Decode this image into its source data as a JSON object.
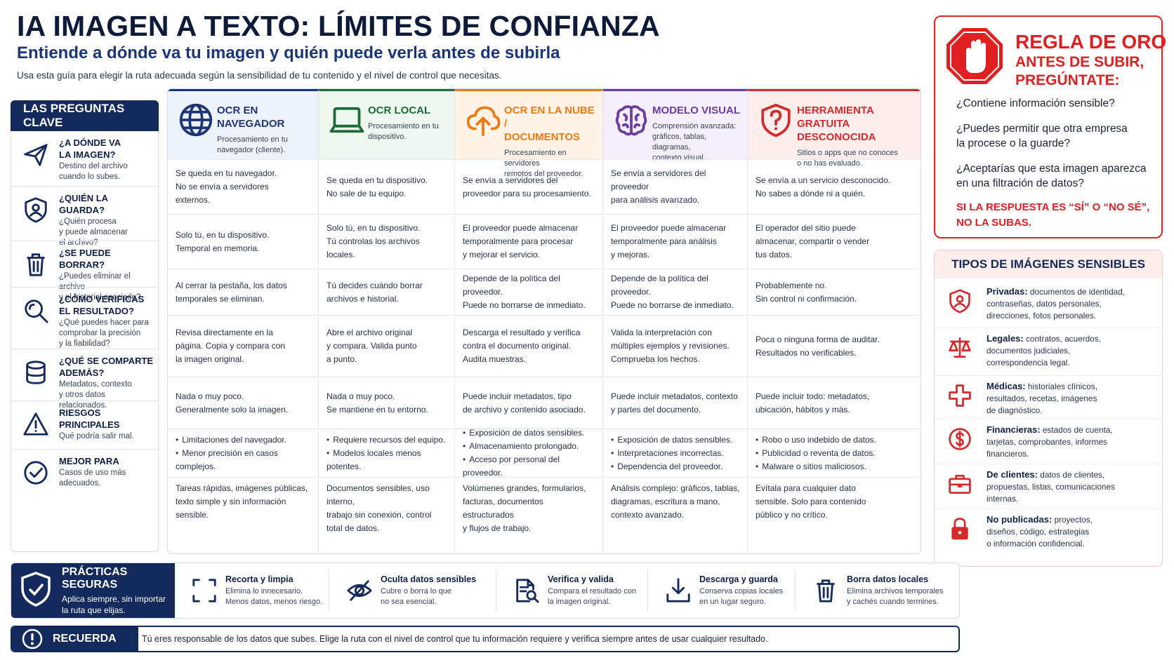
{
  "header": {
    "title": "IA IMAGEN A TEXTO: LÍMITES DE CONFIANZA",
    "subtitle": "Entiende a dónde va tu imagen y quién puede verla antes de subirla",
    "intro": "Usa esta guía para elegir la ruta adecuada según la sensibilidad de tu contenido y el nivel de control que necesitas."
  },
  "questions": {
    "heading": "LAS PREGUNTAS CLAVE",
    "items": [
      {
        "icon": "paper-plane-icon",
        "title": "¿A DÓNDE VA\nLA IMAGEN?",
        "desc": "Destino del archivo\ncuando lo subes."
      },
      {
        "icon": "shield-user-icon",
        "title": "¿QUIÉN LA GUARDA?",
        "desc": "¿Quién procesa\ny puede almacenar\nel archivo?"
      },
      {
        "icon": "trash-icon",
        "title": "¿SE PUEDE BORRAR?",
        "desc": "¿Puedes eliminar el archivo\ny el historial asociado?"
      },
      {
        "icon": "magnifier-icon",
        "title": "¿CÓMO VERIFICAS\nEL RESULTADO?",
        "desc": "¿Qué puedes hacer para\ncomprobar la precisión\ny la fiabilidad?"
      },
      {
        "icon": "database-icon",
        "title": "¿QUÉ SE COMPARTE\nADEMÁS?",
        "desc": "Metadatos, contexto\ny otros datos relacionados."
      },
      {
        "icon": "warning-icon",
        "title": "RIESGOS PRINCIPALES",
        "desc": "Qué podría salir mal."
      },
      {
        "icon": "check-circle-icon",
        "title": "MEJOR PARA",
        "desc": "Casos de uso más\nadecuados."
      }
    ]
  },
  "columns": [
    {
      "icon": "globe-icon",
      "color": "#1c3577",
      "title": "OCR EN NAVEGADOR",
      "desc": "Procesamiento en tu\nnavegador (cliente).",
      "cells": [
        "Se queda en tu navegador.\nNo se envía a servidores\nexternos.",
        "Solo tú, en tu dispositivo.\nTemporal en memoria.",
        "Al cerrar la pestaña, los datos\ntemporales se eliminan.",
        "Revisa directamente en la\npágina. Copia y compara con\nla imagen original.",
        "Nada o muy poco.\nGeneralmente solo la imagen."
      ],
      "risks": [
        "Limitaciones del navegador.",
        "Menor precisión en casos\ncomplejos."
      ],
      "best": "Tareas rápidas, imágenes públicas,\ntexto simple y sin información\nsensible."
    },
    {
      "icon": "laptop-icon",
      "color": "#1d6b3a",
      "title": "OCR LOCAL",
      "desc": "Procesamiento en tu\ndispositivo.",
      "cells": [
        "Se queda en tu dispositivo.\nNo sale de tu equipo.",
        "Solo tú, en tu dispositivo.\nTú controlas los archivos\nlocales.",
        "Tú decides cuándo borrar\narchivos e historial.",
        "Abre el archivo original\ny compara. Valida punto\na punto.",
        "Nada o muy poco.\nSe mantiene en tu entorno."
      ],
      "risks": [
        "Requiere recursos del equipo.",
        "Modelos locales menos potentes."
      ],
      "best": "Documentos sensibles, uso interno,\ntrabajo sin conexión, control\ntotal de datos."
    },
    {
      "icon": "cloud-upload-icon",
      "color": "#ef7a12",
      "title": "OCR EN LA NUBE /\nDOCUMENTOS",
      "desc": "Procesamiento en servidores\nremotos del proveedor.",
      "cells": [
        "Se envía a servidores del\nproveedor para su procesamiento.",
        "El proveedor puede almacenar\ntemporalmente para procesar\ny mejorar el servicio.",
        "Depende de la política del proveedor.\nPuede no borrarse de inmediato.",
        "Descarga el resultado y verifica\ncontra el documento original.\nAudita muestras.",
        "Puede incluir metadatos, tipo\nde archivo y contenido asociado."
      ],
      "risks": [
        "Exposición de datos sensibles.",
        "Almacenamiento prolongado.",
        "Acceso por personal del proveedor."
      ],
      "best": "Volúmenes grandes, formularios,\nfacturas, documentos estructurados\ny flujos de trabajo."
    },
    {
      "icon": "brain-icon",
      "color": "#6a3ea1",
      "title": "MODELO VISUAL",
      "desc": "Comprensión avanzada:\ngráficos, tablas, diagramas,\ncontexto visual.",
      "cells": [
        "Se envía a servidores del proveedor\npara análisis avanzado.",
        "El proveedor puede almacenar\ntemporalmente para análisis\ny mejoras.",
        "Depende de la política del proveedor.\nPuede no borrarse de inmediato.",
        "Valida la interpretación con\nmúltiples ejemplos y revisiones.\nComprueba los hechos.",
        "Puede incluir metadatos, contexto\ny partes del documento."
      ],
      "risks": [
        "Exposición de datos sensibles.",
        "Interpretaciones incorrectas.",
        "Dependencia del proveedor."
      ],
      "best": "Análisis complejo: gráficos, tablas,\ndiagramas, escritura a mano,\ncontexto avanzado."
    },
    {
      "icon": "shield-question-icon",
      "color": "#d42a2a",
      "title": "HERRAMIENTA GRATUITA\nDESCONOCIDA",
      "desc": "Sitios o apps que no conoces\no no has evaluado.",
      "cells": [
        "Se envía a un servicio desconocido.\nNo sabes a dónde ni a quién.",
        "El operador del sitio puede\nalmacenar, compartir o vender\ntus datos.",
        "Probablemente no.\nSin control ni confirmación.",
        "Poca o ninguna forma de auditar.\nResultados no verificables.",
        "Puede incluir todo: metadatos,\nubicación, hábitos y más."
      ],
      "risks": [
        "Robo o uso indebido de datos.",
        "Publicidad o reventa de datos.",
        "Malware o sitios maliciosos."
      ],
      "best": "Evítala para cualquier dato\nsensible. Solo para contenido\npúblico y no crítico."
    }
  ],
  "golden_rule": {
    "icon": "stop-hand-icon",
    "title1": "REGLA DE ORO",
    "title2": "ANTES DE SUBIR,\nPREGÚNTATE:",
    "questions": [
      "¿Contiene información sensible?",
      "¿Puedes permitir que otra empresa\nla procese o la guarde?",
      "¿Aceptarías que esta imagen aparezca\nen una filtración de datos?"
    ],
    "warning": "SI LA RESPUESTA ES “SÍ” O “NO SÉ”,\nNO LA SUBAS."
  },
  "sensitive_types": {
    "heading": "TIPOS DE IMÁGENES SENSIBLES",
    "items": [
      {
        "icon": "shield-user-icon",
        "label": "Privadas:",
        "desc": "documentos de identidad,\ncontraseñas, datos personales,\ndirecciones, fotos personales."
      },
      {
        "icon": "scales-icon",
        "label": "Legales:",
        "desc": "contratos, acuerdos,\ndocumentos judiciales,\ncorrespondencia legal."
      },
      {
        "icon": "medical-cross-icon",
        "label": "Médicas:",
        "desc": "historiales clínicos,\nresultados, recetas, imágenes\nde diagnóstico."
      },
      {
        "icon": "dollar-icon",
        "label": "Financieras:",
        "desc": "estados de cuenta,\ntarjetas, comprobantes, informes\nfinancieros."
      },
      {
        "icon": "briefcase-icon",
        "label": "De clientes:",
        "desc": "datos de clientes,\npropuestas, listas, comunicaciones\ninternas."
      },
      {
        "icon": "lock-icon",
        "label": "No publicadas:",
        "desc": "proyectos,\ndiseños, código, estrategias\no información confidencial."
      }
    ]
  },
  "practices": {
    "title": "PRÁCTICAS SEGURAS",
    "desc": "Aplica siempre, sin importar\nla ruta que elijas.",
    "items": [
      {
        "icon": "crop-icon",
        "title": "Recorta y limpia",
        "desc": "Elimina lo innecesario.\nMenos datos, menos riesgo."
      },
      {
        "icon": "eye-off-icon",
        "title": "Oculta datos sensibles",
        "desc": "Cubre o borra lo que\nno sea esencial."
      },
      {
        "icon": "doc-search-icon",
        "title": "Verifica y valida",
        "desc": "Compara el resultado con\nla imagen original."
      },
      {
        "icon": "download-icon",
        "title": "Descarga y guarda",
        "desc": "Conserva copias locales\nen un lugar seguro."
      },
      {
        "icon": "trash-icon",
        "title": "Borra datos locales",
        "desc": "Elimina archivos temporales\ny cachés cuando termines."
      }
    ]
  },
  "remember": {
    "label": "RECUERDA",
    "text": "Tú eres responsable de los datos que subes.  Elige la ruta con el nivel de control que tu información requiere y verifica siempre antes de usar cualquier resultado."
  }
}
